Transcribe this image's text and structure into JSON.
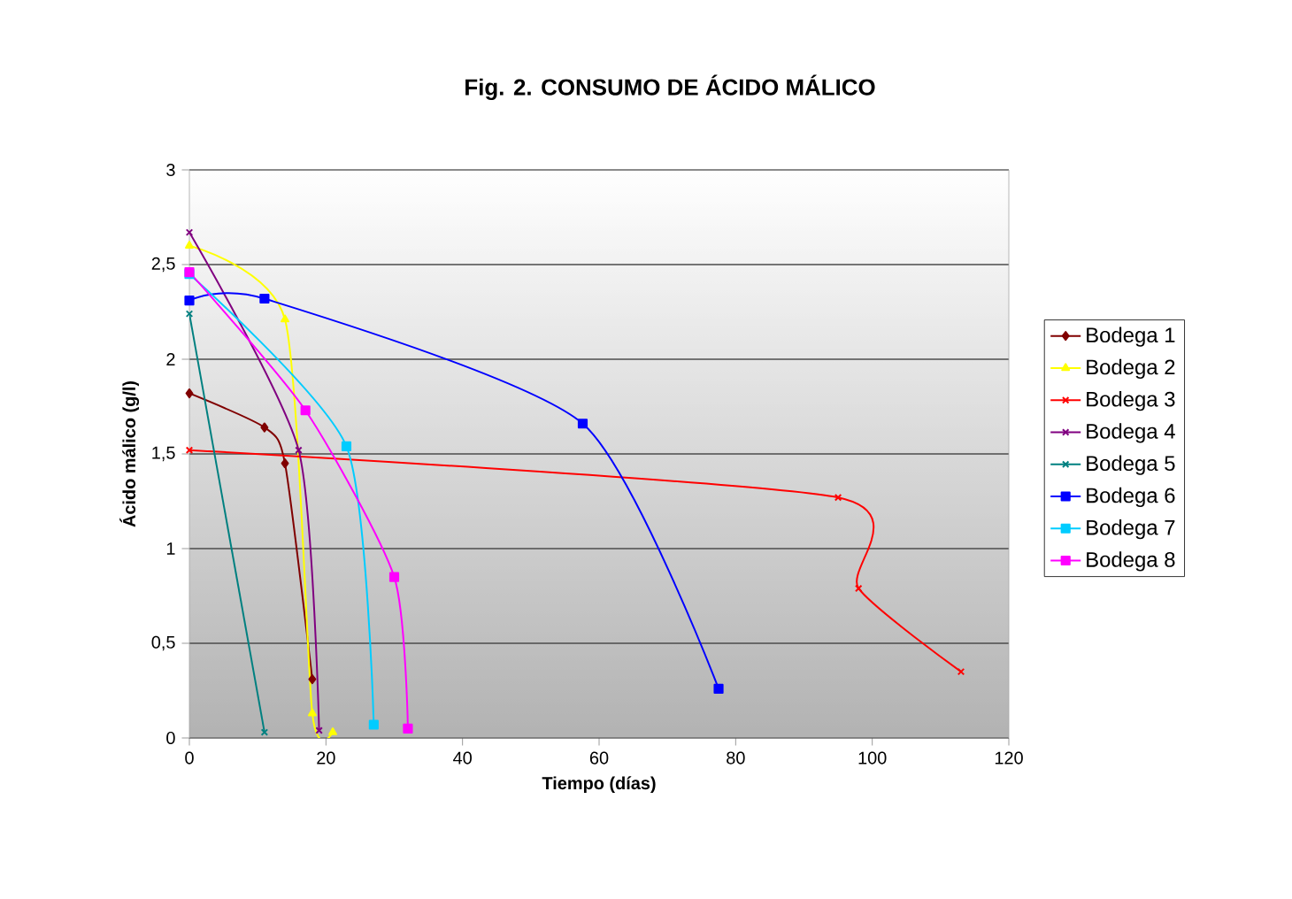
{
  "chart_data": {
    "type": "line",
    "title": "Fig. 2. CONSUMO DE ÁCIDO MÁLICO",
    "xlabel": "Tiempo (días)",
    "ylabel": "Ácido málico (g/l)",
    "xlim": [
      0,
      120
    ],
    "xticks": [
      0,
      20,
      40,
      60,
      80,
      100,
      120
    ],
    "ylim": [
      0,
      3
    ],
    "yticks": [
      {
        "value": 0,
        "label": "0"
      },
      {
        "value": 0.5,
        "label": "0,5"
      },
      {
        "value": 1,
        "label": "1"
      },
      {
        "value": 1.5,
        "label": "1,5"
      },
      {
        "value": 2,
        "label": "2"
      },
      {
        "value": 2.5,
        "label": "2,5"
      },
      {
        "value": 3,
        "label": "3"
      }
    ],
    "grid": "y",
    "legend": "right",
    "series": [
      {
        "name": "Bodega 1",
        "color": "#800000",
        "marker": "diamond",
        "x": [
          0,
          11,
          14,
          18
        ],
        "values": [
          1.82,
          1.64,
          1.45,
          0.31
        ]
      },
      {
        "name": "Bodega 2",
        "color": "#ffff00",
        "marker": "triangle",
        "x": [
          0,
          14,
          18,
          21
        ],
        "values": [
          2.6,
          2.21,
          0.13,
          0.03
        ]
      },
      {
        "name": "Bodega 3",
        "color": "#ff0000",
        "marker": "cross",
        "x": [
          0,
          95,
          98,
          113
        ],
        "values": [
          1.52,
          1.27,
          0.79,
          0.35
        ]
      },
      {
        "name": "Bodega 4",
        "color": "#800080",
        "marker": "cross",
        "x": [
          0,
          16,
          19
        ],
        "values": [
          2.67,
          1.52,
          0.04
        ]
      },
      {
        "name": "Bodega 5",
        "color": "#008080",
        "marker": "cross",
        "x": [
          0,
          11
        ],
        "values": [
          2.24,
          0.03
        ]
      },
      {
        "name": "Bodega 6",
        "color": "#0000ff",
        "marker": "square",
        "x": [
          0,
          11,
          57.6,
          77.5
        ],
        "values": [
          2.31,
          2.32,
          1.66,
          0.26
        ]
      },
      {
        "name": "Bodega 7",
        "color": "#00ccff",
        "marker": "square",
        "x": [
          0,
          23,
          27
        ],
        "values": [
          2.45,
          1.54,
          0.07
        ]
      },
      {
        "name": "Bodega 8",
        "color": "#ff00ff",
        "marker": "square",
        "x": [
          0,
          17,
          30,
          32
        ],
        "values": [
          2.46,
          1.73,
          0.85,
          0.05
        ]
      }
    ]
  }
}
